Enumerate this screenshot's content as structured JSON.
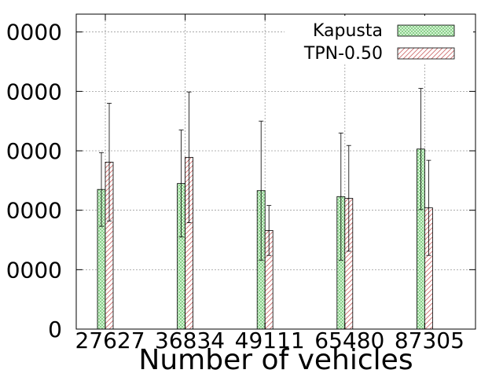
{
  "chart_data": {
    "type": "bar",
    "title": "",
    "xlabel": "Number of vehicles",
    "ylabel": "",
    "categories": [
      "27627",
      "36834",
      "49111",
      "65480",
      "87305"
    ],
    "y_tick_labels": [
      "0",
      "0000",
      "0000",
      "0000",
      "0000",
      "0000"
    ],
    "y_tick_values": [
      0,
      1,
      2,
      3,
      4,
      5
    ],
    "ylim": [
      0,
      5.3
    ],
    "grid": true,
    "legend_position": "top-right",
    "error_bars": true,
    "series": [
      {
        "name": "Kapusta",
        "color": "#c8f0c8",
        "pattern": "crosshatch",
        "values": [
          2.35,
          2.45,
          2.33,
          2.23,
          3.03
        ],
        "error": [
          0.62,
          0.9,
          1.17,
          1.07,
          1.02
        ]
      },
      {
        "name": "TPN-0.50",
        "color": "#e8a0a0",
        "pattern": "diagonal",
        "values": [
          2.81,
          2.89,
          1.66,
          2.2,
          2.04
        ],
        "error": [
          0.99,
          1.1,
          0.42,
          0.89,
          0.8
        ]
      }
    ]
  }
}
